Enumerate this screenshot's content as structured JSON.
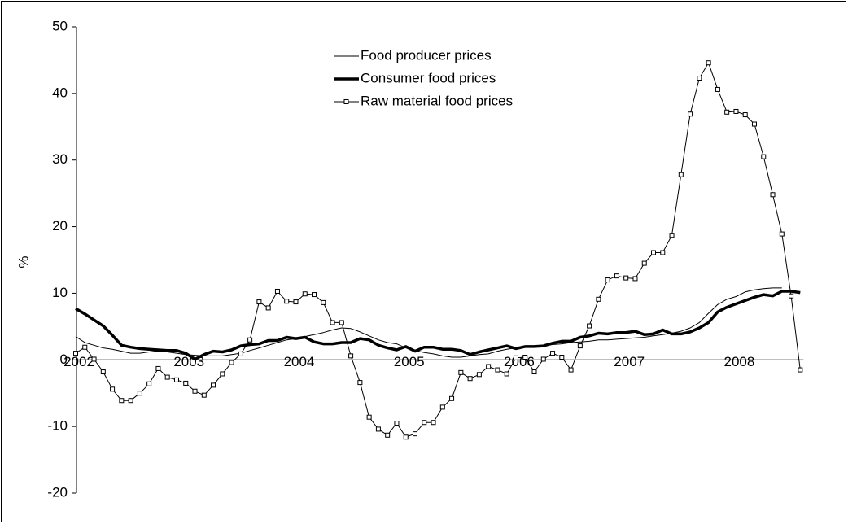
{
  "chart_data": {
    "type": "line",
    "y_label": "%",
    "categories": [
      "2002",
      null,
      null,
      null,
      null,
      null,
      null,
      null,
      null,
      null,
      null,
      null,
      "2003",
      null,
      null,
      null,
      null,
      null,
      null,
      null,
      null,
      null,
      null,
      null,
      "2004",
      null,
      null,
      null,
      null,
      null,
      null,
      null,
      null,
      null,
      null,
      null,
      "2005",
      null,
      null,
      null,
      null,
      null,
      null,
      null,
      null,
      null,
      null,
      null,
      "2006",
      null,
      null,
      null,
      null,
      null,
      null,
      null,
      null,
      null,
      null,
      null,
      "2007",
      null,
      null,
      null,
      null,
      null,
      null,
      null,
      null,
      null,
      null,
      null,
      "2008",
      null,
      null,
      null,
      null,
      null,
      null,
      null
    ],
    "series": [
      {
        "name": "Food producer prices",
        "color": "#000000",
        "width": 1,
        "marker": "none",
        "values": [
          3.5,
          2.6,
          2.2,
          1.8,
          1.6,
          1.3,
          1.0,
          1.0,
          1.2,
          1.3,
          1.2,
          1.0,
          0.8,
          0.7,
          0.6,
          0.6,
          0.6,
          0.8,
          1.0,
          1.4,
          1.8,
          2.2,
          2.6,
          3.0,
          3.2,
          3.5,
          3.8,
          4.1,
          4.5,
          4.8,
          4.7,
          4.2,
          3.6,
          3.0,
          2.6,
          2.4,
          1.8,
          1.4,
          1.1,
          0.9,
          0.6,
          0.4,
          0.4,
          0.6,
          0.8,
          0.9,
          1.3,
          1.6,
          1.8,
          1.9,
          1.9,
          2.1,
          2.3,
          2.4,
          2.6,
          2.7,
          2.8,
          3.0,
          3.0,
          3.1,
          3.2,
          3.3,
          3.4,
          3.6,
          3.8,
          4.0,
          4.3,
          4.8,
          5.6,
          7.0,
          8.3,
          9.1,
          9.5,
          10.2,
          10.5,
          10.7,
          10.8,
          10.8,
          null,
          null
        ]
      },
      {
        "name": "Consumer food prices",
        "color": "#000000",
        "width": 3.5,
        "marker": "none",
        "values": [
          7.7,
          6.9,
          6.0,
          5.1,
          3.7,
          2.2,
          1.9,
          1.7,
          1.6,
          1.5,
          1.4,
          1.4,
          1.0,
          0.1,
          0.8,
          1.3,
          1.2,
          1.5,
          2.1,
          2.3,
          2.4,
          2.9,
          2.9,
          3.4,
          3.2,
          3.4,
          2.7,
          2.4,
          2.4,
          2.6,
          2.6,
          3.2,
          3.0,
          2.2,
          1.8,
          1.5,
          2.0,
          1.3,
          1.9,
          1.9,
          1.6,
          1.6,
          1.4,
          0.8,
          1.2,
          1.5,
          1.8,
          2.1,
          1.7,
          2.0,
          2.0,
          2.1,
          2.5,
          2.8,
          2.8,
          3.4,
          3.6,
          4.0,
          3.9,
          4.1,
          4.1,
          4.3,
          3.8,
          3.9,
          4.5,
          3.9,
          3.9,
          4.2,
          4.8,
          5.6,
          7.2,
          7.9,
          8.4,
          8.9,
          9.4,
          9.8,
          9.6,
          10.3,
          10.3,
          10.1
        ]
      },
      {
        "name": "Raw material food prices",
        "color": "#000000",
        "width": 1,
        "marker": "square",
        "values": [
          1.0,
          1.9,
          0.1,
          -1.8,
          -4.4,
          -6.1,
          -6.1,
          -5.0,
          -3.6,
          -1.3,
          -2.6,
          -3.0,
          -3.5,
          -4.7,
          -5.3,
          -3.8,
          -2.1,
          -0.4,
          0.9,
          3.0,
          8.7,
          7.8,
          10.3,
          8.8,
          8.7,
          9.9,
          9.8,
          8.6,
          5.6,
          5.6,
          0.6,
          -3.4,
          -8.6,
          -10.4,
          -11.3,
          -9.5,
          -11.6,
          -11.1,
          -9.4,
          -9.4,
          -7.1,
          -5.8,
          -1.9,
          -2.8,
          -2.2,
          -1.0,
          -1.5,
          -2.1,
          0.3,
          0.4,
          -1.8,
          0.1,
          1.0,
          0.4,
          -1.5,
          2.1,
          5.1,
          9.1,
          12.0,
          12.6,
          12.3,
          12.2,
          14.5,
          16.1,
          16.1,
          18.7,
          27.8,
          36.9,
          42.3,
          44.6,
          40.6,
          37.2,
          37.3,
          36.8,
          35.4,
          30.5,
          24.8,
          18.9,
          9.6,
          -1.5
        ]
      }
    ],
    "ylim": [
      -20,
      50
    ],
    "yticks": [
      -20,
      -10,
      0,
      10,
      20,
      30,
      40,
      50
    ],
    "grid": false,
    "legend": "top"
  }
}
